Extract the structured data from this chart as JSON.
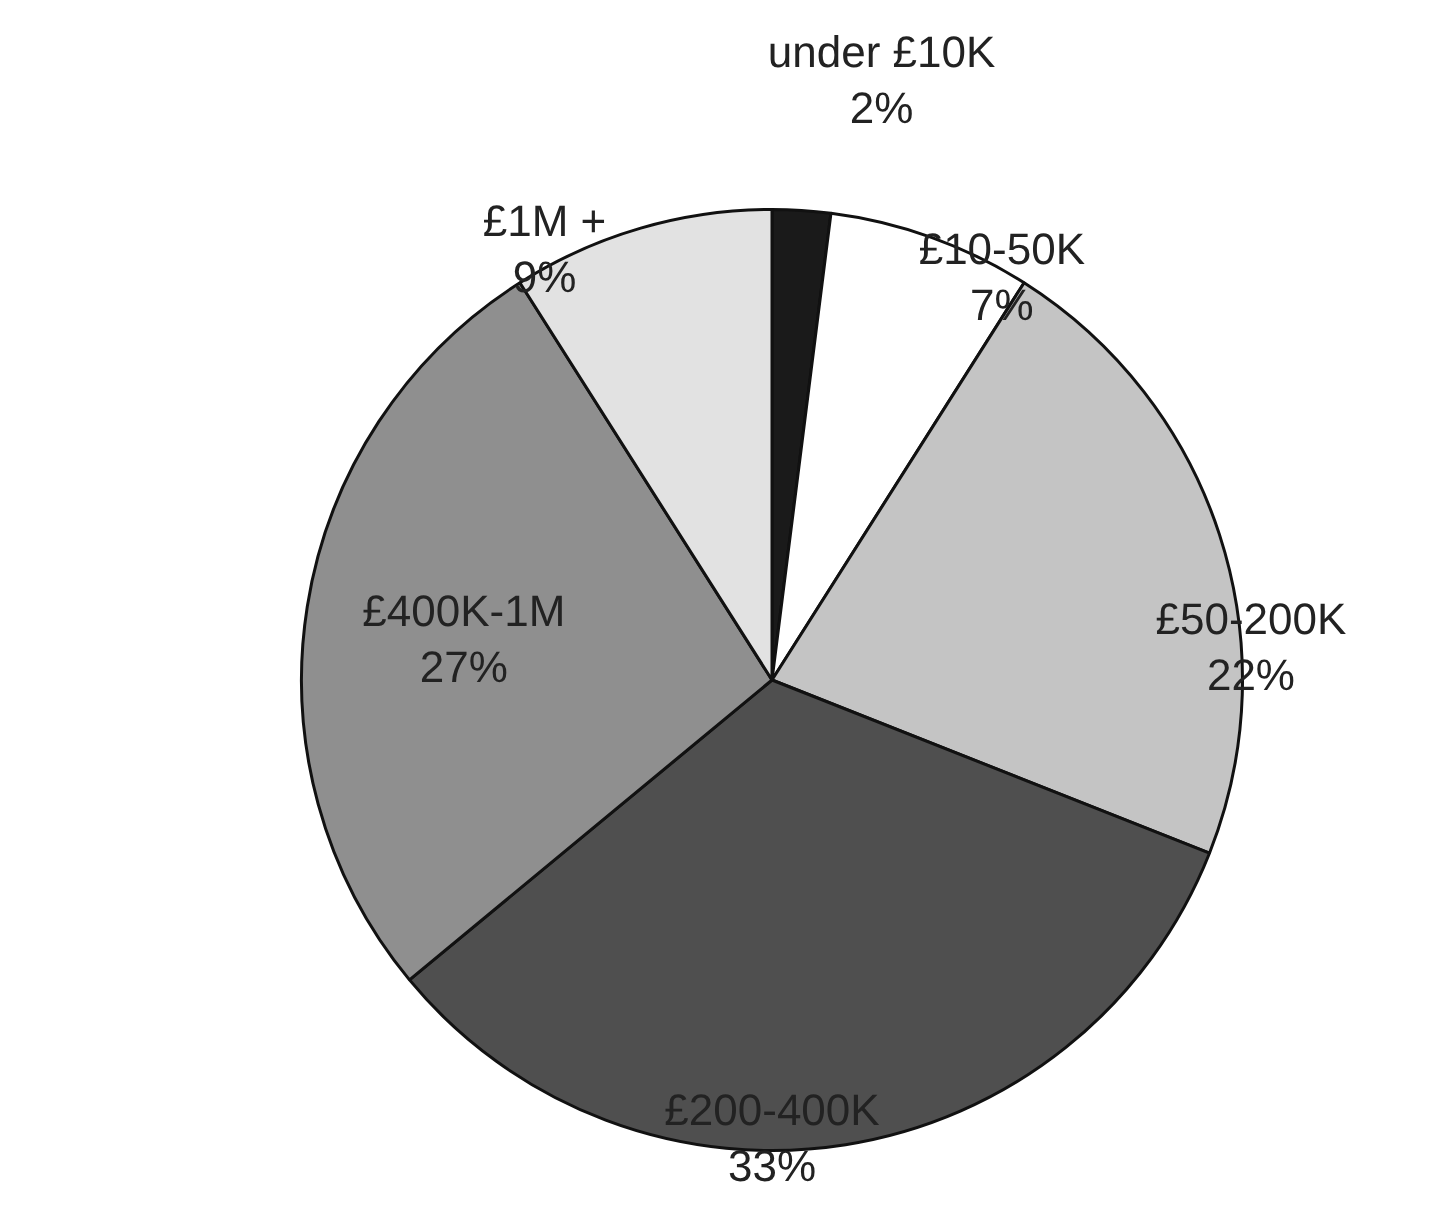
{
  "chart_data": {
    "type": "pie",
    "categories": [
      "under £10K",
      "£10-50K",
      "£50-200K",
      "£200-400K",
      "£400K-1M",
      "£1M +"
    ],
    "values": [
      2,
      7,
      22,
      33,
      27,
      9
    ],
    "value_labels": [
      "2%",
      "7%",
      "22%",
      "33%",
      "27%",
      "9%"
    ],
    "colors": [
      "#1a1a1a",
      "#ffffff",
      "#c4c4c4",
      "#4f4f4f",
      "#8f8f8f",
      "#e2e2e2"
    ],
    "legend": false
  }
}
